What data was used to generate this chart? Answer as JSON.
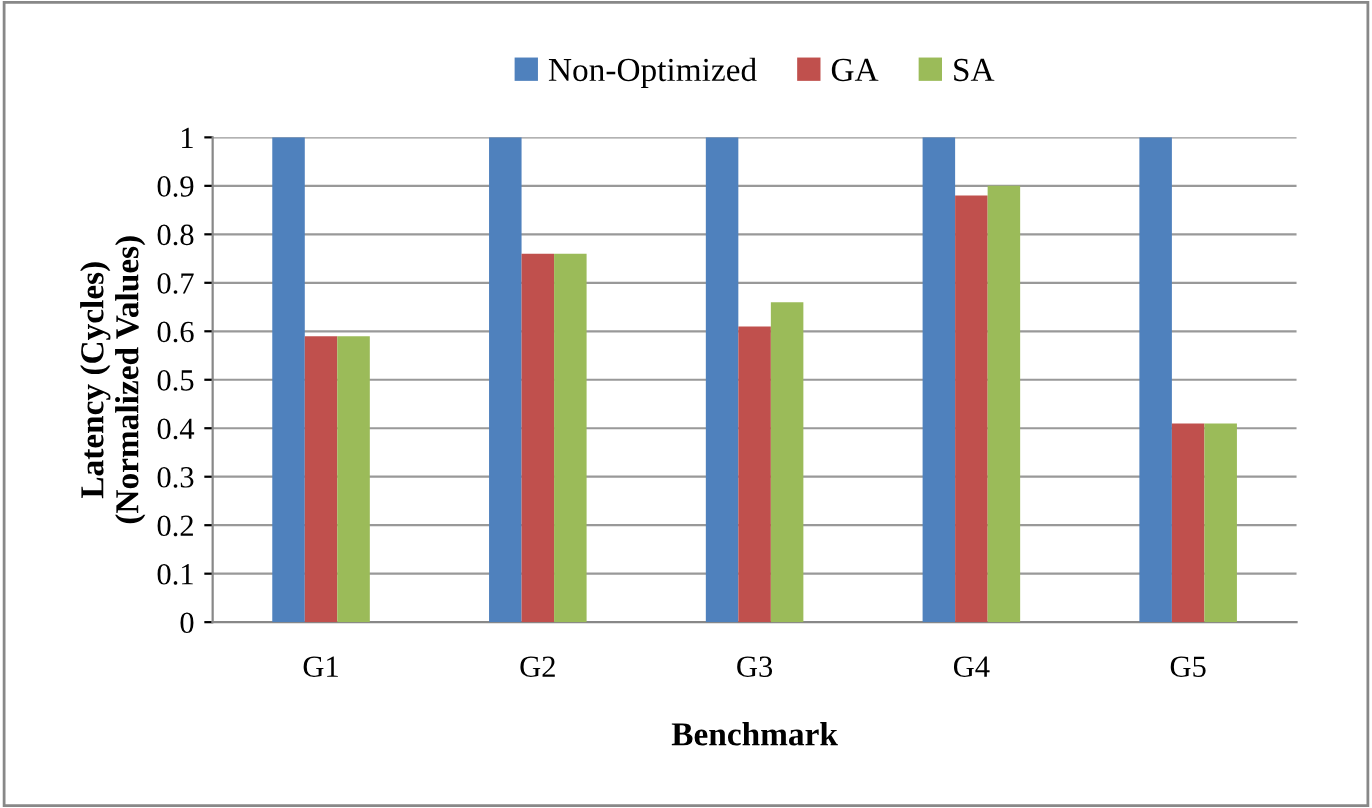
{
  "chart_data": {
    "type": "bar",
    "xlabel": "Benchmark",
    "ylabel": "Latency (Cycles)\n(Normalized Values)",
    "categories": [
      "G1",
      "G2",
      "G3",
      "G4",
      "G5"
    ],
    "series": [
      {
        "name": "Non-Optimized",
        "color": "#4f81bd",
        "values": [
          1,
          1,
          1,
          1,
          1
        ]
      },
      {
        "name": "GA",
        "color": "#c0504d",
        "values": [
          0.59,
          0.76,
          0.61,
          0.88,
          0.41
        ]
      },
      {
        "name": "SA",
        "color": "#9bbb59",
        "values": [
          0.59,
          0.76,
          0.66,
          0.9,
          0.41
        ]
      }
    ],
    "ylim": [
      0,
      1
    ],
    "yticks": [
      0,
      0.1,
      0.2,
      0.3,
      0.4,
      0.5,
      0.6,
      0.7,
      0.8,
      0.9,
      1
    ],
    "grid": "y",
    "legend": "top"
  }
}
